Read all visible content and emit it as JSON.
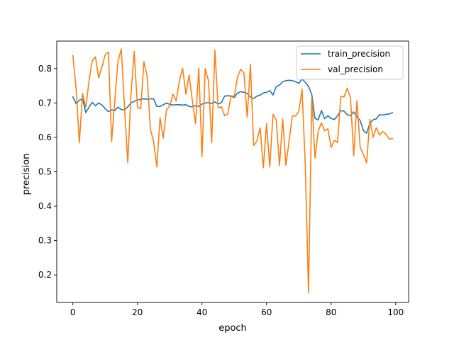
{
  "chart_data": {
    "type": "line",
    "xlabel": "epoch",
    "ylabel": "precision",
    "xlim": [
      -5,
      104
    ],
    "ylim": [
      0.12,
      0.88
    ],
    "xticks": [
      0,
      20,
      40,
      60,
      80,
      100
    ],
    "yticks": [
      0.2,
      0.3,
      0.4,
      0.5,
      0.6,
      0.7,
      0.8
    ],
    "grid": false,
    "legend_position": "top-right",
    "series": [
      {
        "name": "train_precision",
        "color": "#1f77b4",
        "x": [
          0,
          1,
          2,
          3,
          4,
          5,
          6,
          7,
          8,
          9,
          10,
          11,
          12,
          13,
          14,
          15,
          16,
          17,
          18,
          19,
          20,
          21,
          22,
          23,
          24,
          25,
          26,
          27,
          28,
          29,
          30,
          31,
          32,
          33,
          34,
          35,
          36,
          37,
          38,
          39,
          40,
          41,
          42,
          43,
          44,
          45,
          46,
          47,
          48,
          49,
          50,
          51,
          52,
          53,
          54,
          55,
          56,
          57,
          58,
          59,
          60,
          61,
          62,
          63,
          64,
          65,
          66,
          67,
          68,
          69,
          70,
          71,
          72,
          73,
          74,
          75,
          76,
          77,
          78,
          79,
          80,
          81,
          82,
          83,
          84,
          85,
          86,
          87,
          88,
          89,
          90,
          91,
          92,
          93,
          94,
          95,
          96,
          97,
          98,
          99
        ],
        "values": [
          0.718,
          0.698,
          0.708,
          0.712,
          0.672,
          0.688,
          0.702,
          0.692,
          0.7,
          0.694,
          0.684,
          0.675,
          0.68,
          0.678,
          0.688,
          0.681,
          0.68,
          0.689,
          0.7,
          0.705,
          0.708,
          0.711,
          0.712,
          0.711,
          0.712,
          0.712,
          0.69,
          0.69,
          0.695,
          0.7,
          0.696,
          0.694,
          0.695,
          0.695,
          0.694,
          0.695,
          0.69,
          0.689,
          0.692,
          0.69,
          0.697,
          0.7,
          0.701,
          0.698,
          0.703,
          0.697,
          0.701,
          0.72,
          0.721,
          0.72,
          0.716,
          0.729,
          0.733,
          0.731,
          0.728,
          0.717,
          0.713,
          0.72,
          0.723,
          0.729,
          0.731,
          0.736,
          0.723,
          0.748,
          0.752,
          0.762,
          0.765,
          0.766,
          0.765,
          0.762,
          0.757,
          0.77,
          0.76,
          0.748,
          0.725,
          0.655,
          0.651,
          0.678,
          0.654,
          0.663,
          0.655,
          0.652,
          0.663,
          0.678,
          0.676,
          0.666,
          0.663,
          0.674,
          0.66,
          0.649,
          0.62,
          0.612,
          0.641,
          0.651,
          0.654,
          0.666,
          0.665,
          0.667,
          0.668,
          0.672
        ]
      },
      {
        "name": "val_precision",
        "color": "#ff7f0e",
        "x": [
          0,
          1,
          2,
          3,
          4,
          5,
          6,
          7,
          8,
          9,
          10,
          11,
          12,
          13,
          14,
          15,
          16,
          17,
          18,
          19,
          20,
          21,
          22,
          23,
          24,
          25,
          26,
          27,
          28,
          29,
          30,
          31,
          32,
          33,
          34,
          35,
          36,
          37,
          38,
          39,
          40,
          41,
          42,
          43,
          44,
          45,
          46,
          47,
          48,
          49,
          50,
          51,
          52,
          53,
          54,
          55,
          56,
          57,
          58,
          59,
          60,
          61,
          62,
          63,
          64,
          65,
          66,
          67,
          68,
          69,
          70,
          71,
          72,
          73,
          74,
          75,
          76,
          77,
          78,
          79,
          80,
          81,
          82,
          83,
          84,
          85,
          86,
          87,
          88,
          89,
          90,
          91,
          92,
          93,
          94,
          95,
          96,
          97,
          98,
          99
        ],
        "values": [
          0.838,
          0.741,
          0.584,
          0.728,
          0.687,
          0.764,
          0.823,
          0.834,
          0.773,
          0.805,
          0.84,
          0.848,
          0.588,
          0.71,
          0.823,
          0.857,
          0.686,
          0.526,
          0.726,
          0.85,
          0.688,
          0.683,
          0.82,
          0.779,
          0.624,
          0.589,
          0.514,
          0.657,
          0.598,
          0.681,
          0.691,
          0.726,
          0.706,
          0.765,
          0.801,
          0.726,
          0.781,
          0.708,
          0.64,
          0.802,
          0.544,
          0.8,
          0.765,
          0.585,
          0.854,
          0.686,
          0.689,
          0.663,
          0.668,
          0.721,
          0.719,
          0.776,
          0.798,
          0.787,
          0.659,
          0.813,
          0.576,
          0.59,
          0.628,
          0.512,
          0.64,
          0.514,
          0.667,
          0.65,
          0.518,
          0.653,
          0.519,
          0.591,
          0.663,
          0.662,
          0.676,
          0.74,
          0.517,
          0.148,
          0.715,
          0.54,
          0.618,
          0.642,
          0.619,
          0.625,
          0.571,
          0.591,
          0.585,
          0.719,
          0.718,
          0.743,
          0.715,
          0.547,
          0.707,
          0.571,
          0.55,
          0.526,
          0.652,
          0.6,
          0.628,
          0.607,
          0.617,
          0.609,
          0.596,
          0.596
        ]
      }
    ]
  }
}
